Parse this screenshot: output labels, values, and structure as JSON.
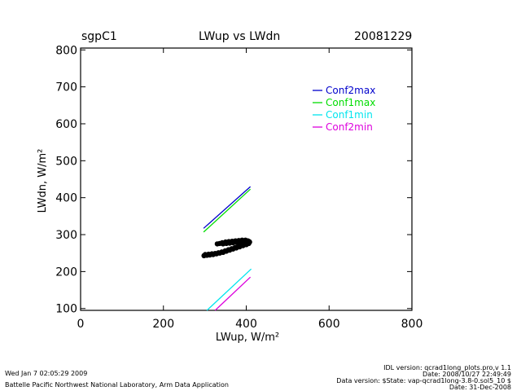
{
  "header": {
    "site": "sgpC1",
    "title": "LWup vs LWdn",
    "date": "20081229"
  },
  "footer": {
    "run_date": "Wed Jan  7 02:05:29 2009",
    "institution": "Battelle Pacific Northwest National Laboratory, Arm Data Application",
    "idl_version": "IDL version: qcrad1long_plots.pro,v 1.1",
    "idl_date": "Date: 2008/10/27 22:49:49",
    "data_version": "Data version: $State: vap-qcrad1long-3.8-0.sol5_10 $",
    "data_date": "Date: 31-Dec-2008"
  },
  "chart_data": {
    "type": "scatter",
    "title": "LWup vs LWdn",
    "xlabel": "LWup, W/m²",
    "ylabel": "LWdn, W/m²",
    "xlim": [
      0,
      800
    ],
    "ylim": [
      95,
      805
    ],
    "xticks": [
      0,
      200,
      400,
      600,
      800
    ],
    "yticks": [
      100,
      200,
      300,
      400,
      500,
      600,
      700,
      800
    ],
    "legend_position": "top-right",
    "colors": {
      "Conf2max": "#0000cc",
      "Conf1max": "#00dd00",
      "Conf1min": "#00e5ee",
      "Conf2min": "#dd00dd",
      "points": "#000000"
    },
    "series": [
      {
        "name": "Conf2max",
        "kind": "line",
        "x": [
          297,
          410
        ],
        "y": [
          317,
          430
        ]
      },
      {
        "name": "Conf1max",
        "kind": "line",
        "x": [
          297,
          410
        ],
        "y": [
          307,
          423
        ]
      },
      {
        "name": "Conf1min",
        "kind": "line",
        "x": [
          305,
          412
        ],
        "y": [
          95,
          207
        ]
      },
      {
        "name": "Conf2min",
        "kind": "line",
        "x": [
          325,
          410
        ],
        "y": [
          95,
          185
        ]
      }
    ],
    "points": {
      "x": [
        298,
        305,
        312,
        320,
        328,
        336,
        344,
        352,
        360,
        368,
        376,
        384,
        392,
        400,
        406,
        408,
        404,
        398,
        390,
        382,
        374,
        366,
        358,
        350,
        342,
        336,
        330,
        301,
        309,
        317,
        325,
        333,
        341,
        349,
        357,
        365,
        373,
        381,
        389,
        397,
        404,
        407,
        400,
        392,
        384,
        376,
        368,
        360,
        352,
        344
      ],
      "y": [
        243,
        244,
        245,
        246,
        248,
        250,
        252,
        255,
        258,
        261,
        264,
        267,
        270,
        273,
        276,
        280,
        283,
        285,
        285,
        284,
        283,
        282,
        281,
        280,
        278,
        276,
        275,
        246,
        247,
        248,
        249,
        251,
        253,
        256,
        259,
        262,
        265,
        268,
        271,
        274,
        278,
        281,
        282,
        281,
        280,
        279,
        278,
        277,
        276,
        275
      ]
    }
  }
}
